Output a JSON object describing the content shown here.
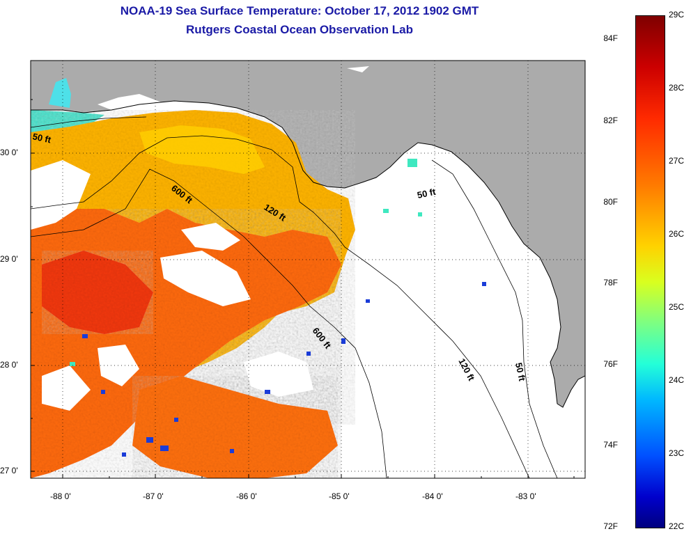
{
  "title": {
    "line1": "NOAA-19 Sea Surface Temperature:  October 17, 2012 1902 GMT",
    "line2": "Rutgers Coastal Ocean Observation Lab"
  },
  "map": {
    "latitude_labels": [
      "30 0'",
      "29 0'",
      "28 0'",
      "27 0'"
    ],
    "longitude_labels": [
      "-88 0'",
      "-87 0'",
      "-86 0'",
      "-85 0'",
      "-84 0'",
      "-83 0'"
    ],
    "contour_labels": [
      "50 ft",
      "600 ft",
      "120 ft",
      "50 ft",
      "600 ft",
      "120 ft",
      "50 ft"
    ],
    "colors": {
      "land": "#ababab",
      "ocean_no_data": "#ffffff",
      "grid": "#000000"
    }
  },
  "colorbar": {
    "fahrenheit_labels": [
      "84F",
      "82F",
      "80F",
      "78F",
      "76F",
      "74F",
      "72F"
    ],
    "celsius_labels": [
      "29C",
      "28C",
      "27C",
      "26C",
      "25C",
      "24C",
      "23C",
      "22C"
    ],
    "range_celsius": [
      22,
      29
    ]
  }
}
